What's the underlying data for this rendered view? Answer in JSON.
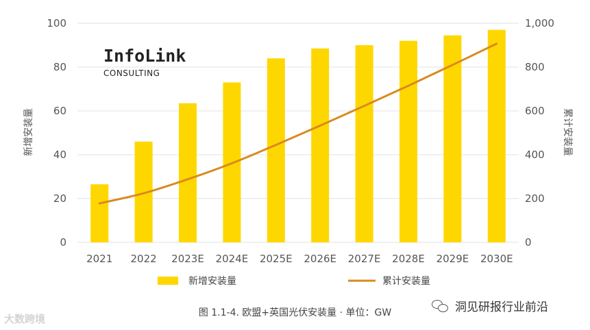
{
  "colors": {
    "bar": "#FFD700",
    "line": "#D98A1E",
    "grid": "#e2e2e2",
    "text": "#555555"
  },
  "logo": {
    "name": "InfoLink",
    "sub": "CONSULTING"
  },
  "caption": "图 1.1-4. 欧盟+英国光伏安装量 · 单位：GW",
  "watermark_left": "大数跨境",
  "watermark_right": "洞见研报行业前沿",
  "chart_data": {
    "type": "bar+line",
    "categories": [
      "2021",
      "2022",
      "2023E",
      "2024E",
      "2025E",
      "2026E",
      "2027E",
      "2028E",
      "2029E",
      "2030E"
    ],
    "series": [
      {
        "name": "新增安装量",
        "type": "bar",
        "axis": "left",
        "values": [
          26.5,
          46,
          63.5,
          73,
          84,
          88.5,
          90,
          92,
          94.5,
          97
        ]
      },
      {
        "name": "累计安装量",
        "type": "line",
        "axis": "right",
        "values": [
          178,
          224,
          288,
          361,
          445,
          533,
          623,
          715,
          810,
          907
        ]
      }
    ],
    "y_left": {
      "label": "新增安装量",
      "min": 0,
      "max": 100,
      "ticks": [
        "0",
        "20",
        "40",
        "60",
        "80",
        "100"
      ]
    },
    "y_right": {
      "label": "累计安装量",
      "min": 0,
      "max": 1000,
      "ticks": [
        "0",
        "200",
        "400",
        "600",
        "800",
        "1,000"
      ]
    },
    "legend": [
      "新增安装量",
      "累计安装量"
    ],
    "grid": true
  }
}
